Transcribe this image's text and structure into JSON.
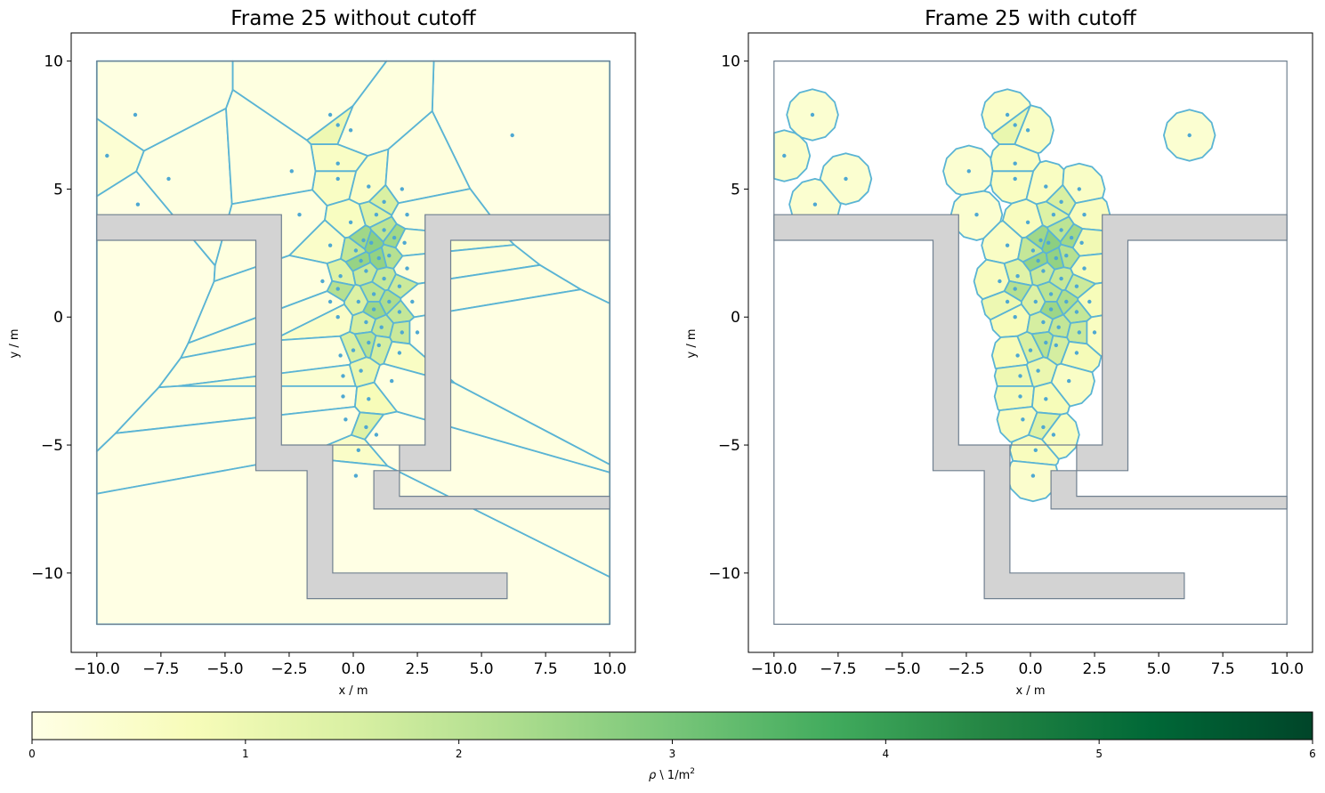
{
  "chart_data": [
    {
      "type": "heatmap",
      "title": "Frame 25 without cutoff",
      "xlabel": "x / m",
      "ylabel": "y / m",
      "xlim": [
        -11,
        11
      ],
      "ylim": [
        -13.1,
        11.1
      ],
      "xticks": [
        -10.0,
        -7.5,
        -5.0,
        -2.5,
        0.0,
        2.5,
        5.0,
        7.5,
        10.0
      ],
      "xtick_labels": [
        "−10.0",
        "−7.5",
        "−5.0",
        "−2.5",
        "0.0",
        "2.5",
        "5.0",
        "7.5",
        "10.0"
      ],
      "yticks": [
        10,
        5,
        0,
        -5,
        -10
      ],
      "ytick_labels": [
        "10",
        "5",
        "0",
        "−5",
        "−10"
      ],
      "walkable_area_outline": [
        [
          -10,
          10
        ],
        [
          10,
          10
        ],
        [
          10,
          -12
        ],
        [
          -10,
          -12
        ]
      ],
      "cutoff": false
    },
    {
      "type": "heatmap",
      "title": "Frame 25 with cutoff",
      "xlabel": "x / m",
      "ylabel": "y / m",
      "xlim": [
        -11,
        11
      ],
      "ylim": [
        -13.1,
        11.1
      ],
      "xticks": [
        -10.0,
        -7.5,
        -5.0,
        -2.5,
        0.0,
        2.5,
        5.0,
        7.5,
        10.0
      ],
      "xtick_labels": [
        "−10.0",
        "−7.5",
        "−5.0",
        "−2.5",
        "0.0",
        "2.5",
        "5.0",
        "7.5",
        "10.0"
      ],
      "yticks": [
        10,
        5,
        0,
        -5,
        -10
      ],
      "ytick_labels": [
        "10",
        "5",
        "0",
        "−5",
        "−10"
      ],
      "walkable_area_outline": [
        [
          -10,
          10
        ],
        [
          10,
          10
        ],
        [
          10,
          -12
        ],
        [
          -10,
          -12
        ]
      ],
      "cutoff": true,
      "cutoff_radius": 1.0
    }
  ],
  "obstacles": [
    [
      [
        -10,
        4
      ],
      [
        -2.8,
        4
      ],
      [
        -2.8,
        -5
      ],
      [
        2.8,
        -5
      ],
      [
        2.8,
        4
      ],
      [
        10,
        4
      ],
      [
        10,
        3
      ],
      [
        3.8,
        3
      ],
      [
        3.8,
        -6
      ],
      [
        0.8,
        -6
      ],
      [
        0.8,
        -7.5
      ],
      [
        10,
        -7.5
      ],
      [
        10,
        -7
      ],
      [
        1.8,
        -7
      ],
      [
        1.8,
        -5
      ],
      [
        -0.8,
        -5
      ],
      [
        -0.8,
        -10
      ],
      [
        6,
        -10
      ],
      [
        6,
        -11
      ],
      [
        -1.8,
        -11
      ],
      [
        -1.8,
        -6
      ],
      [
        -3.8,
        -6
      ],
      [
        -3.8,
        3
      ],
      [
        -10,
        3
      ]
    ]
  ],
  "pedestrians": [
    [
      6.2,
      7.1
    ],
    [
      -8.5,
      7.9
    ],
    [
      -9.6,
      6.3
    ],
    [
      -7.2,
      5.4
    ],
    [
      -8.4,
      4.4
    ],
    [
      -0.9,
      7.9
    ],
    [
      -0.6,
      7.5
    ],
    [
      -0.1,
      7.3
    ],
    [
      -0.6,
      6.0
    ],
    [
      -0.6,
      5.4
    ],
    [
      -2.4,
      5.7
    ],
    [
      -2.1,
      4.0
    ],
    [
      0.6,
      5.1
    ],
    [
      1.9,
      5.0
    ],
    [
      -0.1,
      3.7
    ],
    [
      1.2,
      4.5
    ],
    [
      0.9,
      4.0
    ],
    [
      2.1,
      4.0
    ],
    [
      -0.9,
      2.8
    ],
    [
      0.4,
      3.0
    ],
    [
      1.2,
      3.4
    ],
    [
      1.6,
      3.1
    ],
    [
      0.1,
      2.6
    ],
    [
      0.7,
      2.9
    ],
    [
      2.0,
      2.9
    ],
    [
      -1.2,
      1.4
    ],
    [
      -0.5,
      1.6
    ],
    [
      0.3,
      2.2
    ],
    [
      1.0,
      2.3
    ],
    [
      1.4,
      2.4
    ],
    [
      2.1,
      1.9
    ],
    [
      -0.6,
      1.1
    ],
    [
      0.5,
      1.8
    ],
    [
      1.2,
      1.5
    ],
    [
      1.8,
      1.2
    ],
    [
      -0.9,
      0.6
    ],
    [
      0.2,
      0.6
    ],
    [
      0.8,
      0.9
    ],
    [
      1.4,
      0.6
    ],
    [
      2.3,
      0.6
    ],
    [
      0.8,
      0.3
    ],
    [
      1.8,
      0.2
    ],
    [
      -0.6,
      0.0
    ],
    [
      0.5,
      -0.2
    ],
    [
      1.1,
      -0.4
    ],
    [
      1.9,
      -0.6
    ],
    [
      2.5,
      -0.6
    ],
    [
      -0.5,
      -1.5
    ],
    [
      0.0,
      -1.3
    ],
    [
      0.6,
      -1.0
    ],
    [
      1.0,
      -1.1
    ],
    [
      1.8,
      -1.4
    ],
    [
      -0.4,
      -2.3
    ],
    [
      0.3,
      -2.1
    ],
    [
      -0.4,
      -3.1
    ],
    [
      0.6,
      -3.2
    ],
    [
      -0.3,
      -4.0
    ],
    [
      0.5,
      -4.3
    ],
    [
      0.2,
      -5.2
    ],
    [
      0.1,
      -6.2
    ],
    [
      0.9,
      -4.6
    ],
    [
      1.5,
      -2.5
    ]
  ],
  "colorbar": {
    "label_rho": "ρ",
    "label_unit": " \\ 1/m",
    "label_power": "2",
    "min": 0,
    "max": 6,
    "ticks": [
      "0",
      "1",
      "2",
      "3",
      "4",
      "5",
      "6"
    ],
    "colormap_stops": [
      "#ffffe5",
      "#f7fcb9",
      "#d9f0a3",
      "#addd8e",
      "#78c679",
      "#41ab5d",
      "#238443",
      "#006837",
      "#004529"
    ]
  },
  "colors": {
    "cell_edge": "#5ab4d4",
    "obstacle_fill": "#d3d3d3",
    "obstacle_edge": "#708090",
    "point": "#4ea8d2"
  }
}
